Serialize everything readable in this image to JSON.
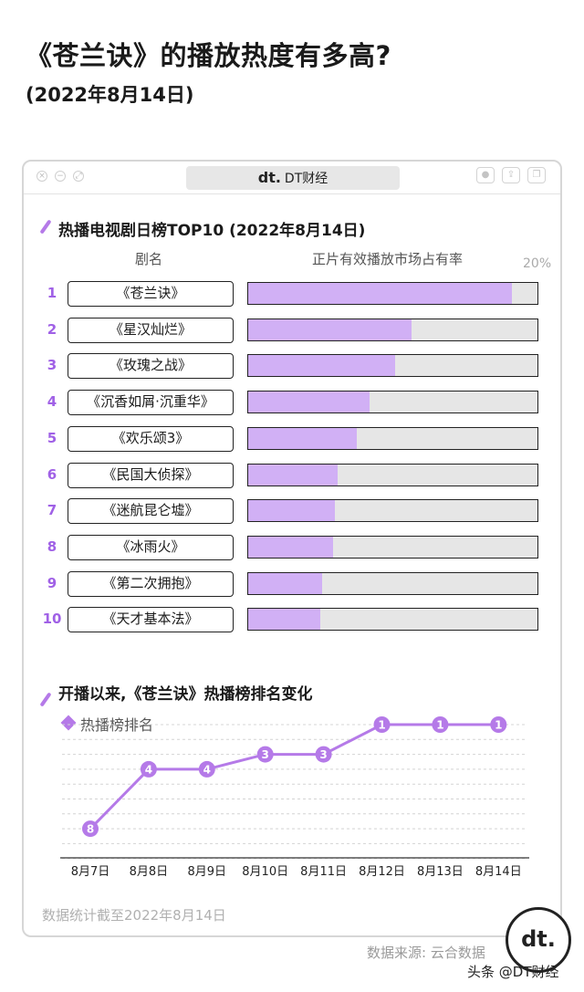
{
  "header": {
    "title": "《苍兰诀》的播放热度有多高?",
    "date": "(2022年8月14日)"
  },
  "window": {
    "brand_logo": "dt.",
    "brand_name": "DT财经",
    "left_buttons": [
      "×",
      "−",
      "⤢"
    ],
    "right_buttons": [
      "●",
      "⇪",
      "❐"
    ]
  },
  "section1": {
    "title": "热播电视剧日榜TOP10 (2022年8月14日)",
    "col_name": "剧名",
    "col_share": "正片有效播放市场占有率",
    "max_label": "20%"
  },
  "chart_data": [
    {
      "type": "bar",
      "title": "热播电视剧日榜TOP10 (2022年8月14日)",
      "xlabel": "正片有效播放市场占有率",
      "ylabel": "剧名",
      "xlim": [
        0,
        20
      ],
      "max_tick_label": "20%",
      "ranks": [
        "1",
        "2",
        "3",
        "4",
        "5",
        "6",
        "7",
        "8",
        "9",
        "10"
      ],
      "categories": [
        "《苍兰诀》",
        "《星汉灿烂》",
        "《玫瑰之战》",
        "《沉香如屑·沉重华》",
        "《欢乐颂3》",
        "《民国大侦探》",
        "《迷航昆仑墟》",
        "《冰雨火》",
        "《第二次拥抱》",
        "《天才基本法》"
      ],
      "values": [
        18.3,
        11.3,
        10.2,
        8.4,
        7.5,
        6.2,
        6.0,
        5.9,
        5.1,
        5.0
      ],
      "colors": {
        "fill": "#d1b0f5",
        "track": "#e6e6e6",
        "rank": "#a061e6"
      }
    },
    {
      "type": "line",
      "title": "开播以来,《苍兰诀》热播榜排名变化",
      "x": [
        "8月7日",
        "8月8日",
        "8月9日",
        "8月10日",
        "8月11日",
        "8月12日",
        "8月13日",
        "8月14日"
      ],
      "series": [
        {
          "name": "热播榜排名",
          "values": [
            8,
            4,
            4,
            3,
            3,
            1,
            1,
            1
          ],
          "labels": [
            "8",
            "4",
            "4",
            "3",
            "3",
            "1",
            "1",
            "1"
          ]
        }
      ],
      "ylim": [
        1,
        10
      ],
      "y_inverted": true,
      "grid": true,
      "legend": "top-left",
      "color": "#b57ae8"
    }
  ],
  "section2": {
    "title": "开播以来,《苍兰诀》热播榜排名变化",
    "legend": "热播榜排名"
  },
  "footer": {
    "note": "数据统计截至2022年8月14日",
    "source": "数据来源: 云合数据",
    "platform": "头条 @DT财经",
    "logo": "dt."
  }
}
